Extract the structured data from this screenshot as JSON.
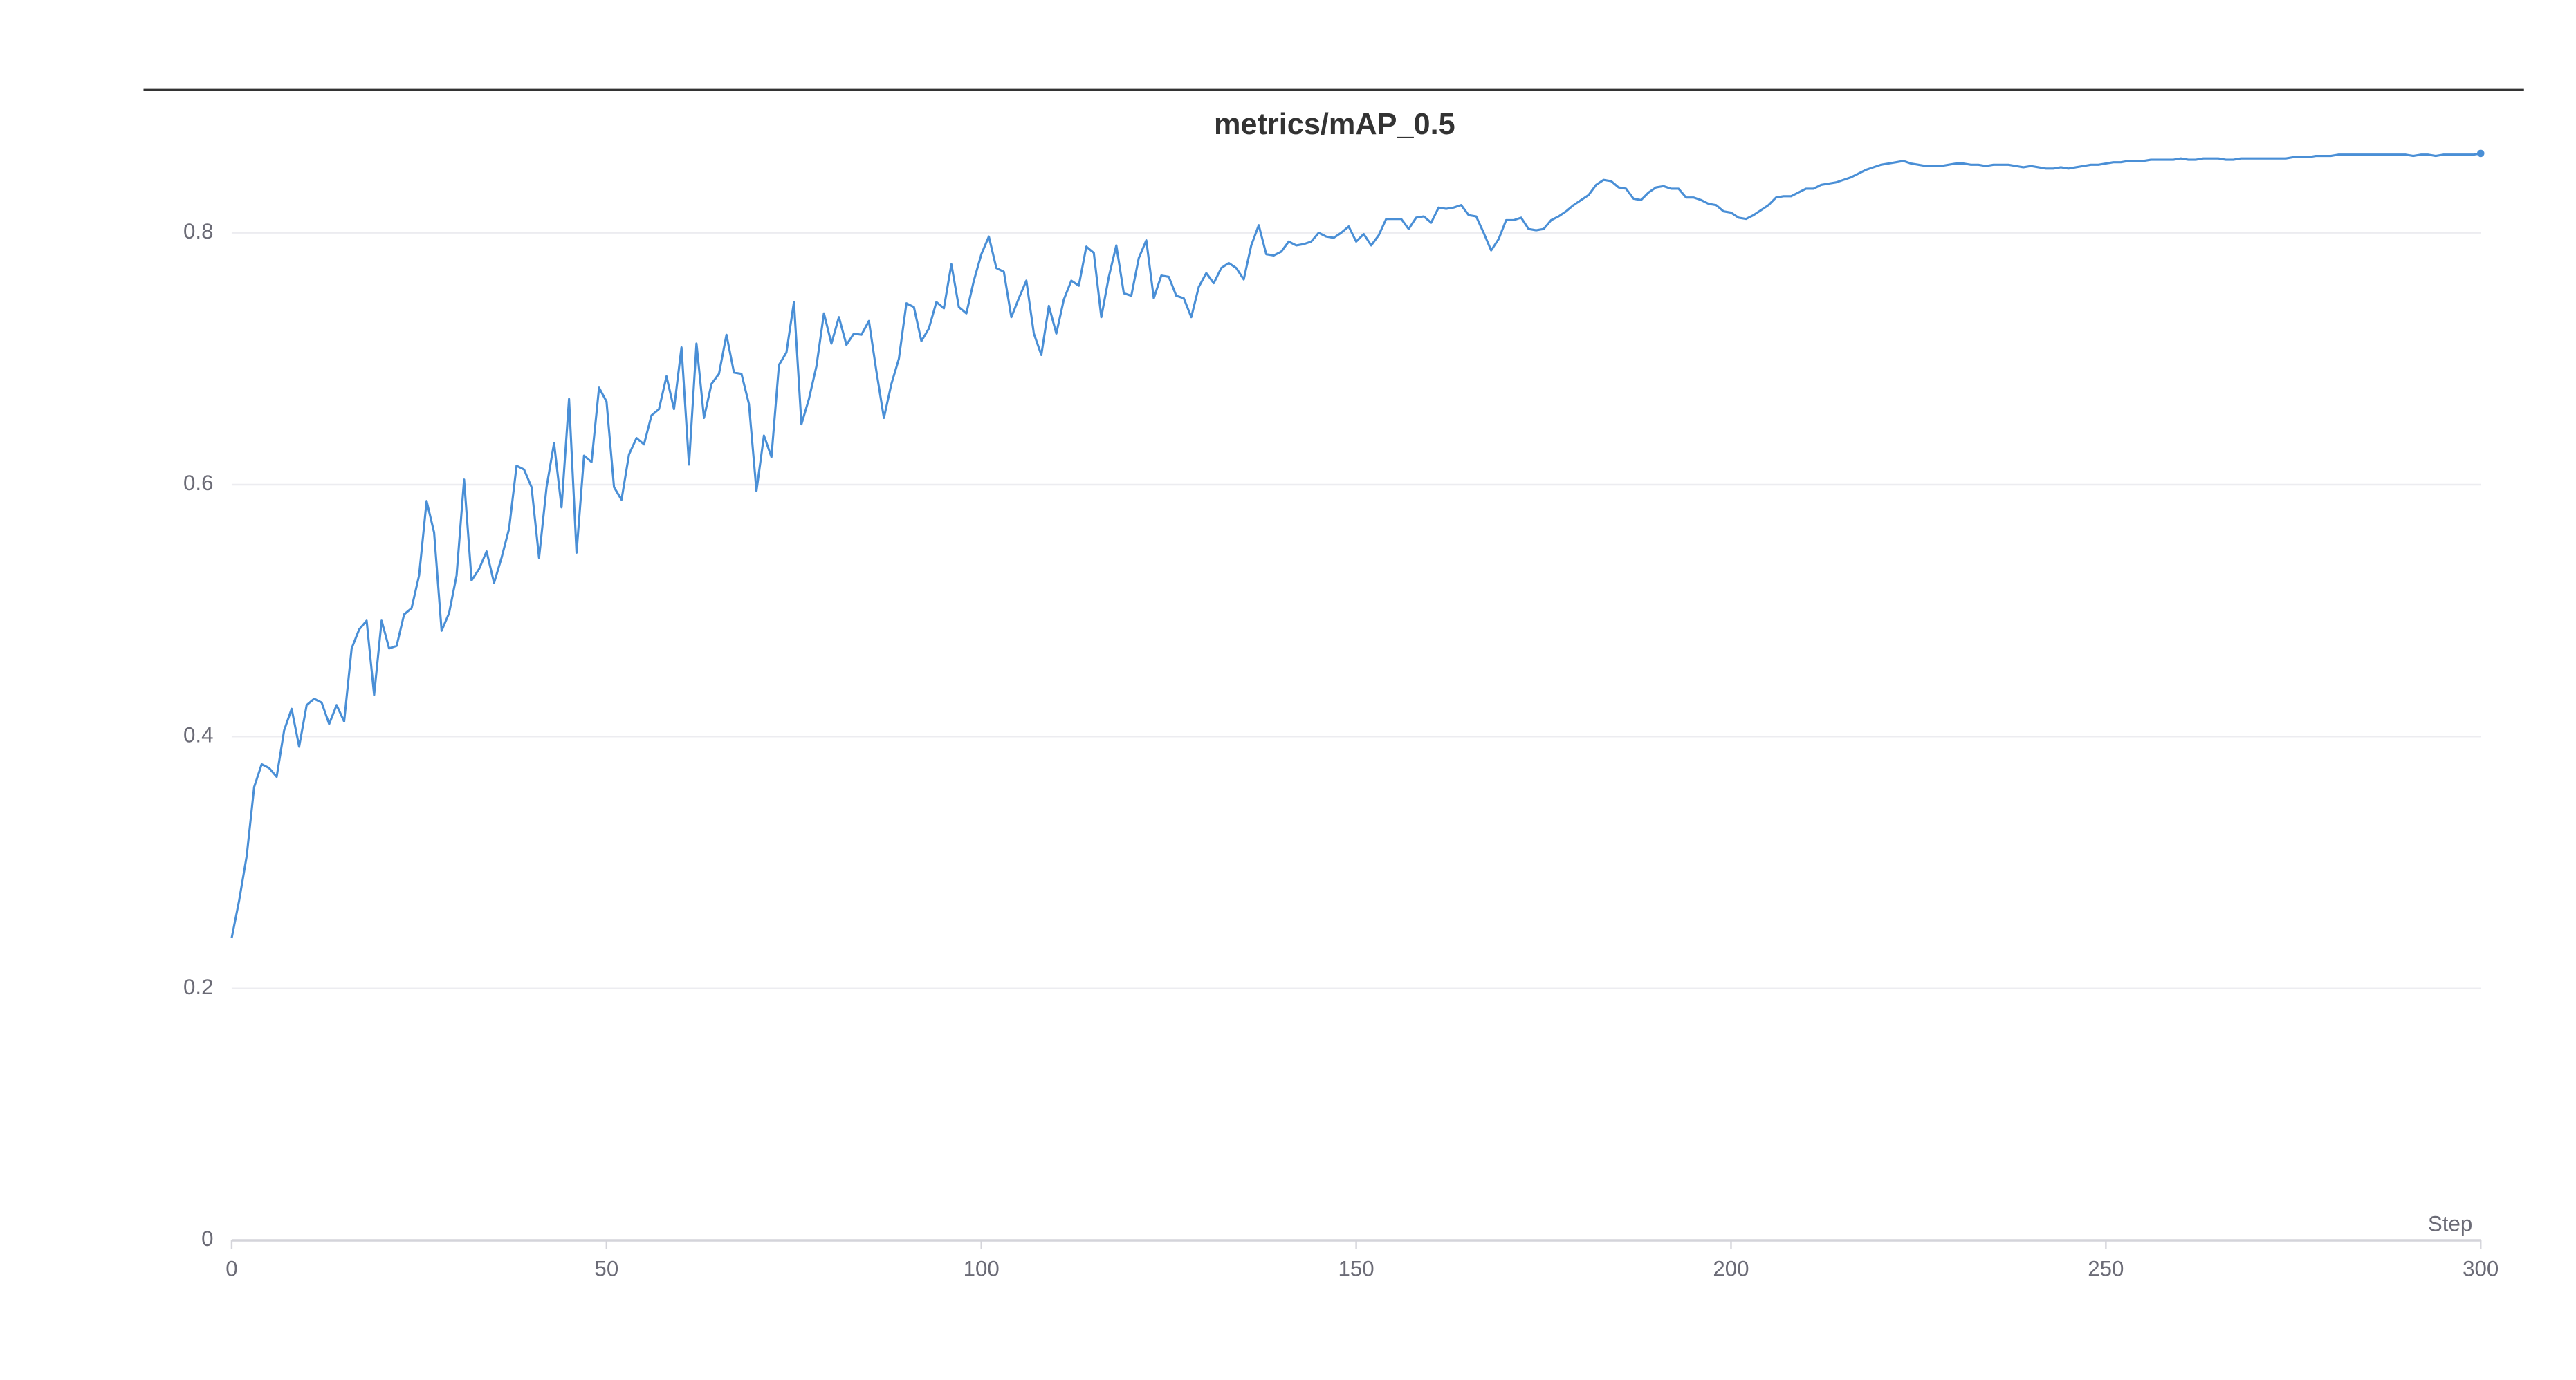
{
  "chart_data": {
    "type": "line",
    "title": "metrics/mAP_0.5",
    "x_label": "Step",
    "color": "#4a8fd6",
    "grid": true,
    "xlim": [
      0,
      300
    ],
    "xticks": [
      0,
      50,
      100,
      150,
      200,
      250,
      300
    ],
    "ylim": [
      0,
      0.87
    ],
    "yticks": [
      0,
      0.2,
      0.4,
      0.6,
      0.8
    ],
    "x": [
      0,
      1,
      2,
      3,
      4,
      5,
      6,
      7,
      8,
      9,
      10,
      11,
      12,
      13,
      14,
      15,
      16,
      17,
      18,
      19,
      20,
      21,
      22,
      23,
      24,
      25,
      26,
      27,
      28,
      29,
      30,
      31,
      32,
      33,
      34,
      35,
      36,
      37,
      38,
      39,
      40,
      41,
      42,
      43,
      44,
      45,
      46,
      47,
      48,
      49,
      50,
      51,
      52,
      53,
      54,
      55,
      56,
      57,
      58,
      59,
      60,
      61,
      62,
      63,
      64,
      65,
      66,
      67,
      68,
      69,
      70,
      71,
      72,
      73,
      74,
      75,
      76,
      77,
      78,
      79,
      80,
      81,
      82,
      83,
      84,
      85,
      86,
      87,
      88,
      89,
      90,
      91,
      92,
      93,
      94,
      95,
      96,
      97,
      98,
      99,
      100,
      101,
      102,
      103,
      104,
      105,
      106,
      107,
      108,
      109,
      110,
      111,
      112,
      113,
      114,
      115,
      116,
      117,
      118,
      119,
      120,
      121,
      122,
      123,
      124,
      125,
      126,
      127,
      128,
      129,
      130,
      131,
      132,
      133,
      134,
      135,
      136,
      137,
      138,
      139,
      140,
      141,
      142,
      143,
      144,
      145,
      146,
      147,
      148,
      149,
      150,
      151,
      152,
      153,
      154,
      155,
      156,
      157,
      158,
      159,
      160,
      161,
      162,
      163,
      164,
      165,
      166,
      167,
      168,
      169,
      170,
      171,
      172,
      173,
      174,
      175,
      176,
      177,
      178,
      179,
      180,
      181,
      182,
      183,
      184,
      185,
      186,
      187,
      188,
      189,
      190,
      191,
      192,
      193,
      194,
      195,
      196,
      197,
      198,
      199,
      200,
      201,
      202,
      203,
      204,
      205,
      206,
      207,
      208,
      209,
      210,
      211,
      212,
      213,
      214,
      215,
      216,
      217,
      218,
      219,
      220,
      221,
      222,
      223,
      224,
      225,
      226,
      227,
      228,
      229,
      230,
      231,
      232,
      233,
      234,
      235,
      236,
      237,
      238,
      239,
      240,
      241,
      242,
      243,
      244,
      245,
      246,
      247,
      248,
      249,
      250,
      251,
      252,
      253,
      254,
      255,
      256,
      257,
      258,
      259,
      260,
      261,
      262,
      263,
      264,
      265,
      266,
      267,
      268,
      269,
      270,
      271,
      272,
      273,
      274,
      275,
      276,
      277,
      278,
      279,
      280,
      281,
      282,
      283,
      284,
      285,
      286,
      287,
      288,
      289,
      290,
      291,
      292,
      293,
      294,
      295,
      296,
      297,
      298,
      299,
      300
    ],
    "values": [
      0.24,
      0.27,
      0.305,
      0.36,
      0.378,
      0.375,
      0.368,
      0.405,
      0.422,
      0.392,
      0.425,
      0.43,
      0.427,
      0.41,
      0.425,
      0.412,
      0.47,
      0.485,
      0.492,
      0.433,
      0.492,
      0.47,
      0.472,
      0.497,
      0.502,
      0.528,
      0.587,
      0.562,
      0.484,
      0.498,
      0.528,
      0.604,
      0.524,
      0.533,
      0.547,
      0.522,
      0.542,
      0.565,
      0.615,
      0.612,
      0.598,
      0.542,
      0.598,
      0.633,
      0.582,
      0.668,
      0.546,
      0.623,
      0.618,
      0.677,
      0.666,
      0.598,
      0.588,
      0.624,
      0.637,
      0.632,
      0.655,
      0.66,
      0.686,
      0.66,
      0.709,
      0.616,
      0.712,
      0.653,
      0.68,
      0.688,
      0.719,
      0.689,
      0.688,
      0.664,
      0.595,
      0.639,
      0.622,
      0.695,
      0.705,
      0.745,
      0.648,
      0.668,
      0.694,
      0.736,
      0.712,
      0.733,
      0.711,
      0.72,
      0.719,
      0.73,
      0.69,
      0.653,
      0.68,
      0.7,
      0.744,
      0.741,
      0.714,
      0.724,
      0.745,
      0.74,
      0.775,
      0.741,
      0.736,
      0.762,
      0.783,
      0.797,
      0.772,
      0.769,
      0.733,
      0.748,
      0.762,
      0.72,
      0.703,
      0.742,
      0.72,
      0.747,
      0.762,
      0.758,
      0.789,
      0.784,
      0.733,
      0.765,
      0.79,
      0.752,
      0.75,
      0.78,
      0.794,
      0.748,
      0.766,
      0.765,
      0.75,
      0.748,
      0.733,
      0.757,
      0.768,
      0.76,
      0.772,
      0.776,
      0.772,
      0.763,
      0.79,
      0.806,
      0.783,
      0.782,
      0.785,
      0.793,
      0.79,
      0.791,
      0.793,
      0.8,
      0.797,
      0.796,
      0.8,
      0.805,
      0.793,
      0.799,
      0.79,
      0.798,
      0.811,
      0.811,
      0.811,
      0.803,
      0.812,
      0.813,
      0.808,
      0.82,
      0.819,
      0.82,
      0.822,
      0.814,
      0.813,
      0.8,
      0.786,
      0.795,
      0.81,
      0.81,
      0.812,
      0.803,
      0.802,
      0.803,
      0.81,
      0.813,
      0.817,
      0.822,
      0.826,
      0.83,
      0.838,
      0.842,
      0.841,
      0.836,
      0.835,
      0.827,
      0.826,
      0.832,
      0.836,
      0.837,
      0.835,
      0.835,
      0.828,
      0.828,
      0.826,
      0.823,
      0.822,
      0.817,
      0.816,
      0.812,
      0.811,
      0.814,
      0.818,
      0.822,
      0.828,
      0.829,
      0.829,
      0.832,
      0.835,
      0.835,
      0.838,
      0.839,
      0.84,
      0.842,
      0.844,
      0.847,
      0.85,
      0.852,
      0.854,
      0.855,
      0.856,
      0.857,
      0.855,
      0.854,
      0.853,
      0.853,
      0.853,
      0.854,
      0.855,
      0.855,
      0.854,
      0.854,
      0.853,
      0.854,
      0.854,
      0.854,
      0.853,
      0.852,
      0.853,
      0.852,
      0.851,
      0.851,
      0.852,
      0.851,
      0.852,
      0.853,
      0.854,
      0.854,
      0.855,
      0.856,
      0.856,
      0.857,
      0.857,
      0.857,
      0.858,
      0.858,
      0.858,
      0.858,
      0.859,
      0.858,
      0.858,
      0.859,
      0.859,
      0.859,
      0.858,
      0.858,
      0.859,
      0.859,
      0.859,
      0.859,
      0.859,
      0.859,
      0.859,
      0.86,
      0.86,
      0.86,
      0.861,
      0.861,
      0.861,
      0.862,
      0.862,
      0.862,
      0.862,
      0.862,
      0.862,
      0.862,
      0.862,
      0.862,
      0.862,
      0.861,
      0.862,
      0.862,
      0.861,
      0.862,
      0.862,
      0.862,
      0.862,
      0.862,
      0.863
    ]
  }
}
